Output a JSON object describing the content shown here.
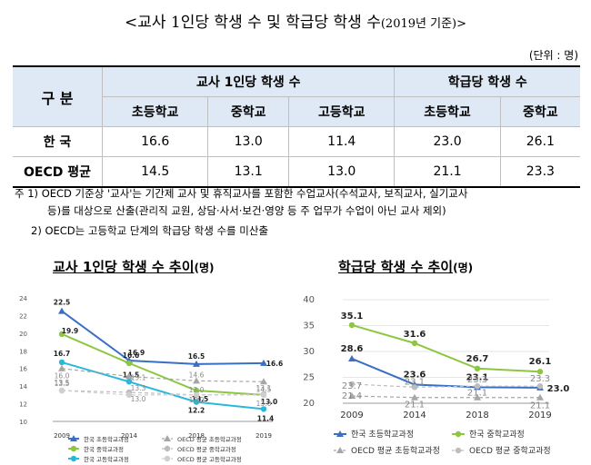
{
  "title": "<교사 1인당 학생 수 및 학급당 학생 수",
  "title_sub": "(2019년 기준)>",
  "unit": "(단위 : 명)",
  "table": {
    "gubun": "구 분",
    "group1": "교사 1인당 학생 수",
    "group2": "학급당 학생 수",
    "sub": [
      "초등학교",
      "중학교",
      "고등학교",
      "초등학교",
      "중학교"
    ],
    "rows": [
      {
        "label": "한 국",
        "values": [
          "16.6",
          "13.0",
          "11.4",
          "23.0",
          "26.1"
        ]
      },
      {
        "label": "OECD 평균",
        "values": [
          "14.5",
          "13.1",
          "13.0",
          "21.1",
          "23.3"
        ]
      }
    ]
  },
  "notes": {
    "n1a": "주 1) OECD 기준상 '교사'는 기간제 교사 및 휴직교사를 포함한 수업교사(수석교사, 보직교사, 실기교사",
    "n1b": "등)를 대상으로 산출(관리직 교원, 상담·사서·보건·영양 등 주 업무가 수업이 아닌 교사 제외)",
    "n2": "2) OECD는 고등학교 단계의 학급당 학생 수를 미산출"
  },
  "chart_data": [
    {
      "type": "line",
      "title_main": "교사 1인당 학생 수 추이",
      "title_unit": "(명)",
      "x": [
        "2009",
        "2014",
        "2018",
        "2019"
      ],
      "ylim": [
        10,
        24
      ],
      "yticks": [
        "10",
        "12",
        "14",
        "16",
        "18",
        "20",
        "22",
        "24"
      ],
      "series": [
        {
          "name": "한국 초등학교과정",
          "color": "#3a6fc4",
          "dash": false,
          "marker": "triangle",
          "values": [
            22.5,
            16.9,
            16.5,
            16.6
          ],
          "labels": [
            "22.5",
            "16.9",
            "16.5",
            "16.6"
          ]
        },
        {
          "name": "한국 중학교과정",
          "color": "#8dc63f",
          "dash": false,
          "marker": "circle",
          "values": [
            19.9,
            16.6,
            13.5,
            13.0
          ],
          "labels": [
            "19.9",
            "16.6",
            "13.5",
            "13.0"
          ]
        },
        {
          "name": "한국 고등학교과정",
          "color": "#29b8d9",
          "dash": false,
          "marker": "circle",
          "values": [
            16.7,
            14.5,
            12.2,
            11.4
          ],
          "labels": [
            "16.7",
            "14.5",
            "12.2",
            "11.4"
          ]
        },
        {
          "name": "OECD 평균 초등학교과정",
          "color": "#a6a6a6",
          "dash": true,
          "marker": "triangle",
          "values": [
            16.0,
            15.1,
            14.6,
            14.5
          ],
          "labels": [
            "16.0",
            "15.1",
            "14.6",
            "14.5"
          ]
        },
        {
          "name": "OECD 평균 중학교과정",
          "color": "#bdbdbd",
          "dash": true,
          "marker": "circle",
          "values": [
            13.5,
            13.3,
            13.0,
            13.1
          ],
          "labels": [
            "13.5",
            "13.3",
            "13.0",
            "13.1"
          ]
        },
        {
          "name": "OECD 평균 고등학교과정",
          "color": "#cfcfcf",
          "dash": true,
          "marker": "circle",
          "values": [
            13.5,
            13.0,
            13.0,
            13.0
          ],
          "labels": [
            "13.5",
            "13.0",
            "13.0",
            "13.0"
          ]
        }
      ]
    },
    {
      "type": "line",
      "title_main": "학급당 학생 수 추이",
      "title_unit": "(명)",
      "x": [
        "2009",
        "2014",
        "2018",
        "2019"
      ],
      "ylim": [
        20,
        40
      ],
      "yticks": [
        "20",
        "25",
        "30",
        "35",
        "40"
      ],
      "series": [
        {
          "name": "한국 초등학교과정",
          "color": "#3a6fc4",
          "dash": false,
          "marker": "triangle",
          "values": [
            28.6,
            23.6,
            23.1,
            23.0
          ],
          "labels": [
            "28.6",
            "23.6",
            "23.1",
            "23.0"
          ]
        },
        {
          "name": "한국 중학교과정",
          "color": "#8dc63f",
          "dash": false,
          "marker": "circle",
          "values": [
            35.1,
            31.6,
            26.7,
            26.1
          ],
          "labels": [
            "35.1",
            "31.6",
            "26.7",
            "26.1"
          ]
        },
        {
          "name": "OECD 평균 초등학교과정",
          "color": "#a6a6a6",
          "dash": true,
          "marker": "triangle",
          "values": [
            21.4,
            21.1,
            21.1,
            21.1
          ],
          "labels": [
            "21.4",
            "21.1",
            "21.1",
            "21.1"
          ]
        },
        {
          "name": "OECD 평균 중학교과정",
          "color": "#bdbdbd",
          "dash": true,
          "marker": "circle",
          "values": [
            23.7,
            23.1,
            23.3,
            23.3
          ],
          "labels": [
            "23.7",
            "23.1",
            "23.3",
            "23.3"
          ]
        }
      ]
    }
  ]
}
